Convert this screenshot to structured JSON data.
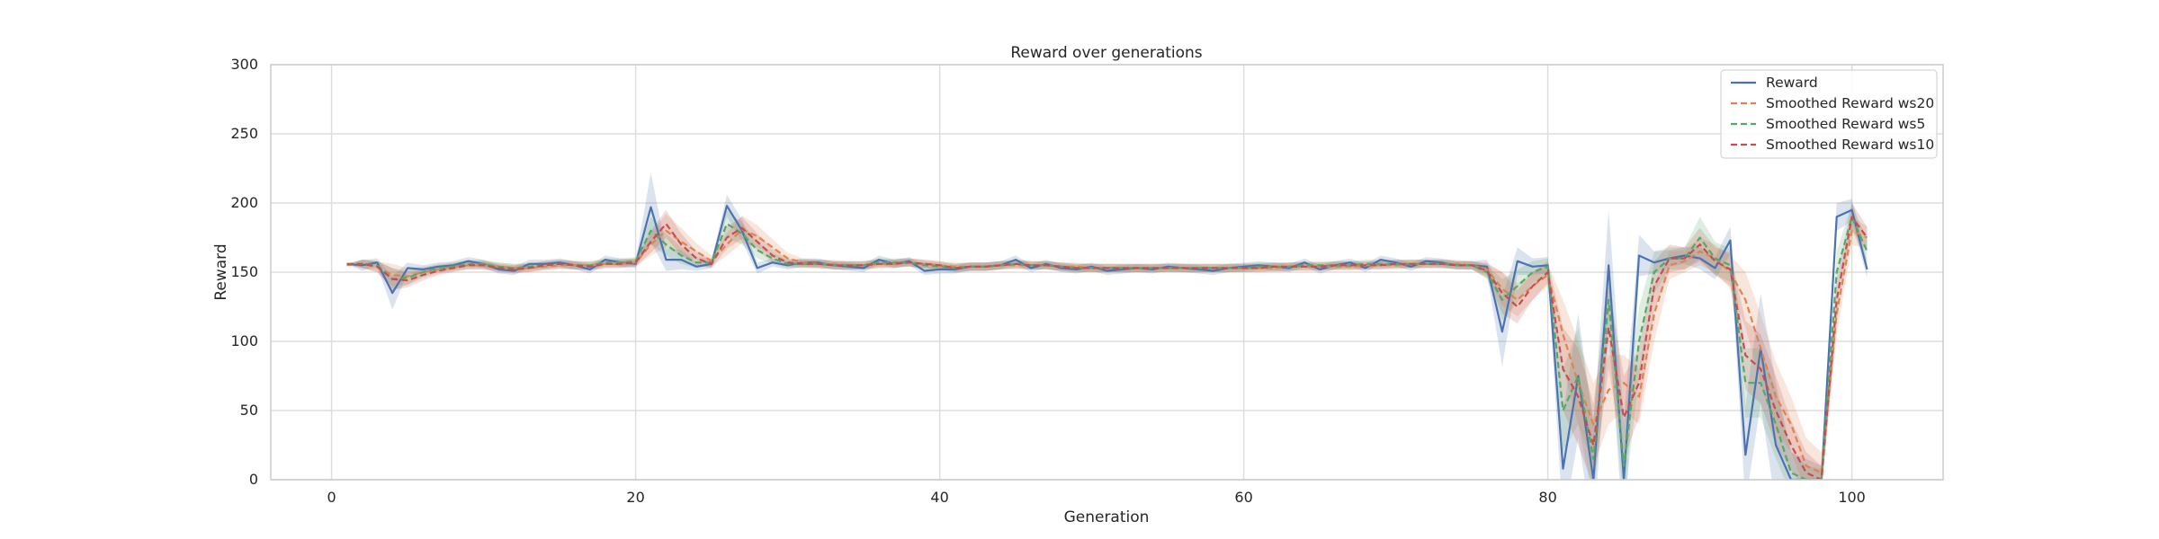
{
  "chart_data": {
    "type": "line",
    "title": "Reward over generations",
    "xlabel": "Generation",
    "ylabel": "Reward",
    "xlim": [
      -4,
      106
    ],
    "ylim": [
      0,
      300
    ],
    "xticks": [
      0,
      20,
      40,
      60,
      80,
      100
    ],
    "yticks": [
      0,
      50,
      100,
      150,
      200,
      250,
      300
    ],
    "grid": true,
    "legend_position": "top-right",
    "x": [
      1,
      2,
      3,
      4,
      5,
      6,
      7,
      8,
      9,
      10,
      11,
      12,
      13,
      14,
      15,
      16,
      17,
      18,
      19,
      20,
      21,
      22,
      23,
      24,
      25,
      26,
      27,
      28,
      29,
      30,
      31,
      32,
      33,
      34,
      35,
      36,
      37,
      38,
      39,
      40,
      41,
      42,
      43,
      44,
      45,
      46,
      47,
      48,
      49,
      50,
      51,
      52,
      53,
      54,
      55,
      56,
      57,
      58,
      59,
      60,
      61,
      62,
      63,
      64,
      65,
      66,
      67,
      68,
      69,
      70,
      71,
      72,
      73,
      74,
      75,
      76,
      77,
      78,
      79,
      80,
      81,
      82,
      83,
      84,
      85,
      86,
      87,
      88,
      89,
      90,
      91,
      92,
      93,
      94,
      95,
      96,
      97,
      98,
      99,
      100,
      101
    ],
    "series": [
      {
        "name": "Reward",
        "color": "#4c72b0",
        "dash": "solid",
        "values": [
          156,
          155,
          157,
          135,
          153,
          152,
          154,
          155,
          158,
          156,
          152,
          151,
          156,
          156,
          157,
          155,
          152,
          159,
          157,
          156,
          197,
          159,
          159,
          154,
          156,
          198,
          180,
          153,
          157,
          155,
          157,
          157,
          155,
          154,
          153,
          159,
          156,
          158,
          151,
          152,
          152,
          154,
          154,
          155,
          159,
          153,
          156,
          153,
          152,
          154,
          151,
          152,
          153,
          152,
          154,
          153,
          152,
          151,
          153,
          154,
          155,
          154,
          153,
          157,
          152,
          155,
          157,
          153,
          159,
          157,
          154,
          158,
          157,
          155,
          155,
          154,
          107,
          158,
          154,
          155,
          8,
          75,
          0,
          155,
          0,
          162,
          157,
          160,
          162,
          160,
          153,
          173,
          18,
          95,
          25,
          0,
          0,
          0,
          190,
          195,
          152
        ],
        "band": [
          0,
          4,
          3,
          12,
          4,
          3,
          3,
          3,
          3,
          3,
          3,
          3,
          3,
          3,
          3,
          3,
          3,
          3,
          3,
          3,
          25,
          8,
          7,
          3,
          3,
          8,
          8,
          4,
          3,
          3,
          3,
          3,
          3,
          3,
          3,
          3,
          3,
          3,
          3,
          3,
          3,
          3,
          3,
          3,
          3,
          3,
          3,
          3,
          3,
          3,
          3,
          3,
          3,
          3,
          3,
          3,
          3,
          3,
          3,
          3,
          3,
          3,
          3,
          3,
          3,
          3,
          3,
          3,
          3,
          3,
          3,
          3,
          3,
          3,
          3,
          5,
          25,
          10,
          6,
          6,
          40,
          45,
          40,
          40,
          45,
          15,
          8,
          6,
          6,
          8,
          8,
          10,
          35,
          40,
          45,
          20,
          15,
          10,
          10,
          8,
          6
        ]
      },
      {
        "name": "Smoothed Reward ws20",
        "color": "#dd8452",
        "dash": "dashed",
        "values": [
          155,
          156,
          154,
          148,
          147,
          150,
          152,
          154,
          155,
          155,
          154,
          153,
          153,
          154,
          155,
          155,
          155,
          156,
          156,
          157,
          170,
          180,
          172,
          165,
          158,
          170,
          181,
          176,
          168,
          160,
          157,
          156,
          156,
          155,
          155,
          156,
          156,
          157,
          156,
          155,
          154,
          154,
          154,
          155,
          155,
          155,
          155,
          154,
          154,
          153,
          153,
          153,
          153,
          153,
          153,
          153,
          153,
          153,
          153,
          153,
          153,
          153,
          154,
          154,
          154,
          154,
          154,
          155,
          155,
          155,
          156,
          156,
          156,
          156,
          155,
          152,
          138,
          130,
          140,
          148,
          105,
          70,
          40,
          65,
          70,
          60,
          120,
          155,
          158,
          165,
          160,
          150,
          130,
          95,
          60,
          40,
          10,
          5,
          120,
          180,
          175
        ],
        "band": [
          0,
          3,
          4,
          8,
          6,
          4,
          3,
          3,
          3,
          3,
          3,
          3,
          3,
          3,
          3,
          3,
          3,
          3,
          3,
          3,
          8,
          12,
          10,
          6,
          4,
          8,
          10,
          8,
          6,
          4,
          3,
          3,
          3,
          3,
          3,
          3,
          3,
          3,
          3,
          3,
          3,
          3,
          3,
          3,
          3,
          3,
          3,
          3,
          3,
          3,
          3,
          3,
          3,
          3,
          3,
          3,
          3,
          3,
          3,
          3,
          3,
          3,
          3,
          3,
          3,
          3,
          3,
          3,
          3,
          3,
          3,
          3,
          3,
          3,
          3,
          5,
          12,
          12,
          10,
          8,
          25,
          30,
          30,
          25,
          20,
          20,
          20,
          10,
          8,
          10,
          10,
          12,
          20,
          25,
          25,
          20,
          20,
          15,
          15,
          10,
          8
        ]
      },
      {
        "name": "Smoothed Reward ws5",
        "color": "#55a868",
        "dash": "dashed",
        "values": [
          156,
          156,
          155,
          145,
          146,
          150,
          153,
          154,
          156,
          156,
          154,
          153,
          154,
          155,
          156,
          155,
          155,
          157,
          157,
          158,
          180,
          170,
          162,
          157,
          157,
          185,
          178,
          166,
          160,
          156,
          156,
          156,
          155,
          155,
          155,
          157,
          157,
          157,
          155,
          154,
          153,
          154,
          154,
          155,
          156,
          155,
          155,
          154,
          153,
          153,
          153,
          153,
          153,
          153,
          153,
          153,
          153,
          153,
          153,
          153,
          154,
          154,
          154,
          155,
          155,
          155,
          155,
          156,
          156,
          156,
          156,
          156,
          156,
          155,
          155,
          150,
          130,
          140,
          150,
          154,
          50,
          75,
          15,
          130,
          10,
          100,
          150,
          160,
          160,
          175,
          160,
          155,
          70,
          70,
          40,
          5,
          0,
          0,
          150,
          190,
          165
        ],
        "band": [
          0,
          3,
          3,
          8,
          5,
          3,
          3,
          3,
          3,
          3,
          3,
          3,
          3,
          3,
          3,
          3,
          3,
          3,
          3,
          3,
          10,
          8,
          6,
          4,
          3,
          10,
          8,
          6,
          4,
          3,
          3,
          3,
          3,
          3,
          3,
          3,
          3,
          3,
          3,
          3,
          3,
          3,
          3,
          3,
          3,
          3,
          3,
          3,
          3,
          3,
          3,
          3,
          3,
          3,
          3,
          3,
          3,
          3,
          3,
          3,
          3,
          3,
          3,
          3,
          3,
          3,
          3,
          3,
          3,
          3,
          3,
          3,
          3,
          3,
          3,
          5,
          15,
          12,
          8,
          6,
          30,
          35,
          30,
          30,
          30,
          25,
          15,
          8,
          8,
          15,
          12,
          12,
          25,
          25,
          25,
          15,
          10,
          8,
          15,
          10,
          8
        ]
      },
      {
        "name": "Smoothed Reward ws10",
        "color": "#c44e52",
        "dash": "dashed",
        "values": [
          156,
          156,
          154,
          145,
          144,
          148,
          151,
          153,
          155,
          155,
          153,
          152,
          153,
          155,
          156,
          155,
          154,
          156,
          156,
          157,
          172,
          185,
          170,
          160,
          156,
          175,
          182,
          172,
          162,
          157,
          156,
          156,
          155,
          155,
          155,
          156,
          156,
          157,
          156,
          155,
          153,
          154,
          154,
          155,
          156,
          155,
          155,
          154,
          153,
          153,
          153,
          153,
          153,
          153,
          153,
          153,
          153,
          153,
          153,
          153,
          153,
          154,
          154,
          154,
          154,
          155,
          155,
          155,
          155,
          156,
          156,
          156,
          156,
          155,
          155,
          151,
          135,
          125,
          140,
          150,
          80,
          60,
          25,
          110,
          45,
          70,
          140,
          160,
          160,
          170,
          158,
          152,
          90,
          80,
          50,
          25,
          5,
          0,
          130,
          190,
          175
        ],
        "band": [
          0,
          3,
          4,
          8,
          5,
          4,
          3,
          3,
          3,
          3,
          3,
          3,
          3,
          3,
          3,
          3,
          3,
          3,
          3,
          3,
          8,
          10,
          8,
          5,
          3,
          8,
          8,
          6,
          5,
          3,
          3,
          3,
          3,
          3,
          3,
          3,
          3,
          3,
          3,
          3,
          3,
          3,
          3,
          3,
          3,
          3,
          3,
          3,
          3,
          3,
          3,
          3,
          3,
          3,
          3,
          3,
          3,
          3,
          3,
          3,
          3,
          3,
          3,
          3,
          3,
          3,
          3,
          3,
          3,
          3,
          3,
          3,
          3,
          3,
          3,
          5,
          15,
          12,
          10,
          8,
          30,
          35,
          30,
          30,
          30,
          25,
          18,
          10,
          8,
          12,
          10,
          12,
          25,
          25,
          25,
          18,
          15,
          10,
          15,
          10,
          8
        ]
      }
    ]
  }
}
